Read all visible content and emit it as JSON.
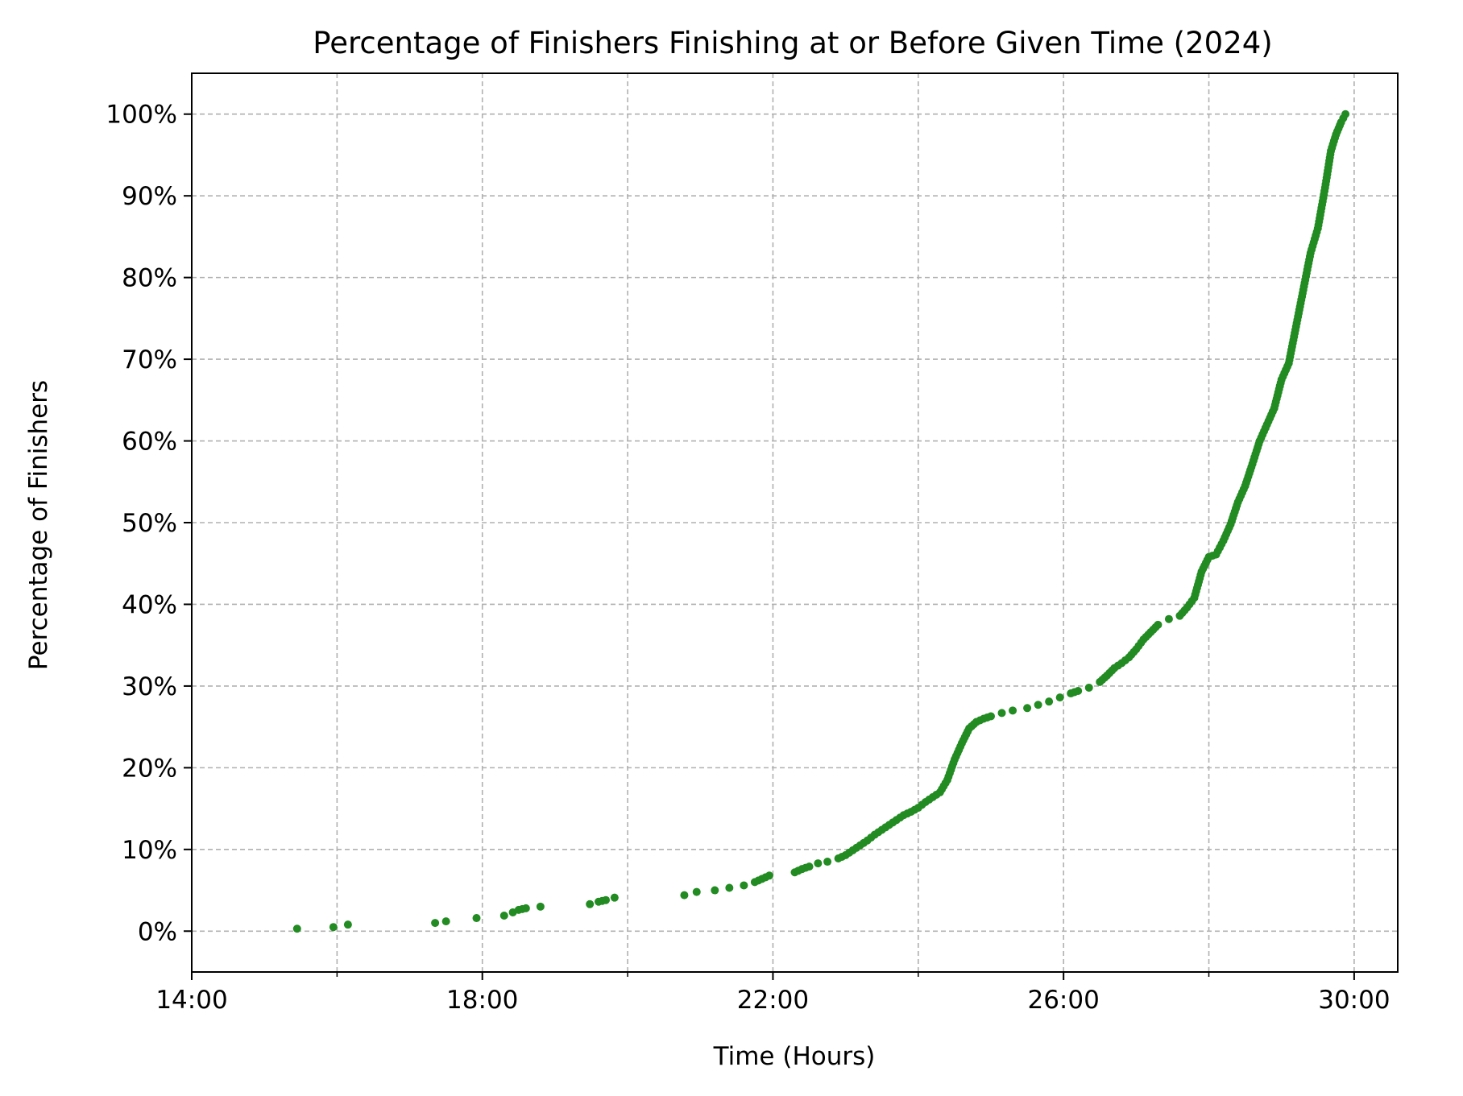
{
  "chart_data": {
    "type": "scatter",
    "title": "Percentage of Finishers Finishing at or Before Given Time (2024)",
    "xlabel": "Time (Hours)",
    "ylabel": "Percentage of Finishers",
    "xlim": [
      14,
      30.6
    ],
    "ylim": [
      -5,
      105
    ],
    "x_ticks": [
      14,
      18,
      22,
      26,
      30
    ],
    "x_tick_labels": [
      "14:00",
      "18:00",
      "22:00",
      "26:00",
      "30:00"
    ],
    "x_minor_ticks": [
      16,
      20,
      24,
      28
    ],
    "y_ticks": [
      0,
      10,
      20,
      30,
      40,
      50,
      60,
      70,
      80,
      90,
      100
    ],
    "y_tick_labels": [
      "0%",
      "10%",
      "20%",
      "30%",
      "40%",
      "50%",
      "60%",
      "70%",
      "80%",
      "90%",
      "100%"
    ],
    "grid": true,
    "color": "#228b22",
    "series": [
      {
        "x": [
          15.45,
          15.95,
          16.15,
          17.35,
          17.5,
          17.92,
          18.3,
          18.42,
          18.5,
          18.6,
          18.8,
          19.48,
          19.6,
          19.7,
          19.82,
          20.78,
          20.95,
          21.2,
          21.4,
          21.6,
          21.75,
          21.85,
          21.95,
          22.3,
          22.4,
          22.5,
          22.62,
          22.75,
          22.9,
          23.0,
          23.1,
          23.2,
          23.3,
          23.4,
          23.5,
          23.6,
          23.7,
          23.8,
          23.9,
          24.0,
          24.1,
          24.2,
          24.3,
          24.4,
          24.5,
          24.6,
          24.7,
          24.8,
          24.9,
          25.0,
          25.15,
          25.3,
          25.5,
          25.65,
          25.8,
          25.95,
          26.1,
          26.2,
          26.35,
          26.5,
          26.6,
          26.7,
          26.8,
          26.9,
          27.0,
          27.1,
          27.2,
          27.3,
          27.45,
          27.6,
          27.7,
          27.8,
          27.9,
          28.0,
          28.1,
          28.2,
          28.3,
          28.4,
          28.5,
          28.6,
          28.7,
          28.8,
          28.9,
          29.0,
          29.1,
          29.2,
          29.3,
          29.4,
          29.5,
          29.6,
          29.68,
          29.75,
          29.82,
          29.88
        ],
        "y": [
          0.3,
          0.5,
          0.8,
          1.0,
          1.2,
          1.6,
          1.9,
          2.3,
          2.6,
          2.8,
          3.0,
          3.3,
          3.6,
          3.8,
          4.1,
          4.4,
          4.8,
          5.0,
          5.3,
          5.6,
          6.0,
          6.4,
          6.8,
          7.2,
          7.6,
          7.9,
          8.3,
          8.5,
          8.9,
          9.3,
          9.9,
          10.5,
          11.1,
          11.8,
          12.4,
          13.0,
          13.6,
          14.2,
          14.6,
          15.1,
          15.8,
          16.4,
          17.0,
          18.5,
          21.0,
          23.0,
          24.8,
          25.6,
          26.0,
          26.3,
          26.7,
          27.0,
          27.3,
          27.7,
          28.1,
          28.6,
          29.1,
          29.4,
          29.8,
          30.5,
          31.3,
          32.2,
          32.8,
          33.5,
          34.5,
          35.7,
          36.6,
          37.5,
          38.2,
          38.6,
          39.6,
          40.8,
          44.0,
          45.8,
          46.1,
          47.8,
          49.8,
          52.5,
          54.5,
          57.2,
          60.0,
          62.0,
          64.0,
          67.5,
          69.5,
          74.0,
          78.5,
          83.0,
          86.0,
          91.0,
          95.5,
          97.5,
          99.0,
          100.0
        ]
      }
    ]
  }
}
